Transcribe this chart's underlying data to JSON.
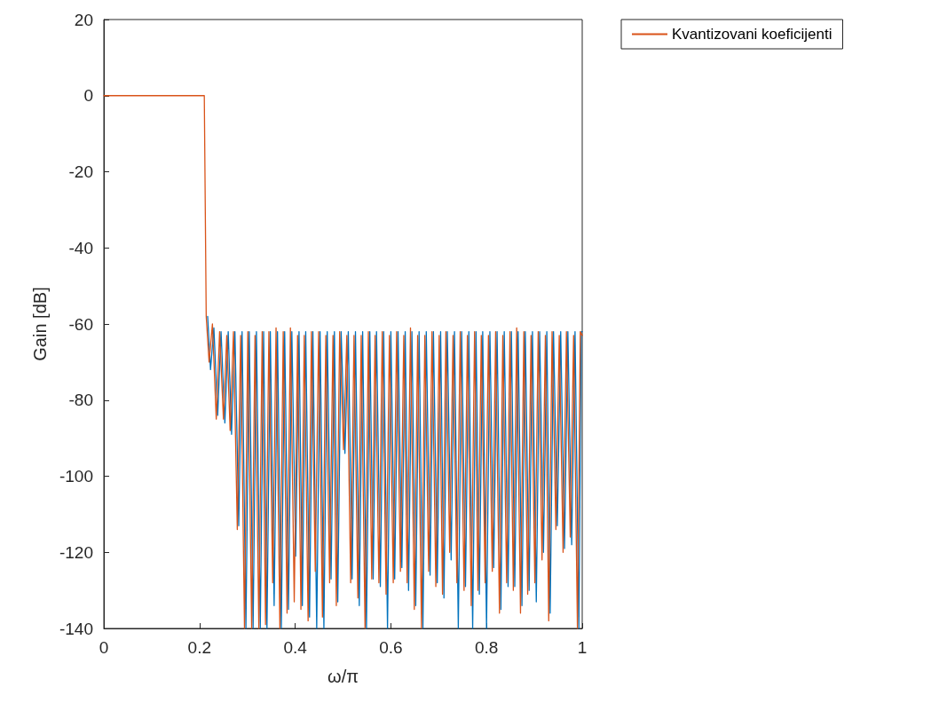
{
  "chart_data": {
    "type": "line",
    "xlabel": "ω/π",
    "ylabel": "Gain [dB]",
    "xlim": [
      0,
      1
    ],
    "xticks": [
      0,
      0.2,
      0.4,
      0.6,
      0.8,
      1
    ],
    "ylim": [
      -140,
      20
    ],
    "yticks": [
      -140,
      -120,
      -100,
      -80,
      -60,
      -40,
      -20,
      0,
      20
    ],
    "grid": false,
    "legend": "top right",
    "marker": "none",
    "line_style": "solid",
    "x": [
      0,
      0.21,
      0.214,
      0.22,
      0.227,
      0.235,
      0.242,
      0.25,
      0.257,
      0.264,
      0.271,
      0.279,
      0.286,
      0.294,
      0.301,
      0.309,
      0.316,
      0.324,
      0.331,
      0.338,
      0.345,
      0.353,
      0.36,
      0.368,
      0.375,
      0.383,
      0.39,
      0.398,
      0.405,
      0.412,
      0.419,
      0.427,
      0.434,
      0.442,
      0.449,
      0.457,
      0.464,
      0.472,
      0.479,
      0.486,
      0.493,
      0.501,
      0.508,
      0.516,
      0.523,
      0.531,
      0.538,
      0.546,
      0.553,
      0.56,
      0.567,
      0.575,
      0.582,
      0.59,
      0.597,
      0.605,
      0.612,
      0.62,
      0.627,
      0.634,
      0.641,
      0.649,
      0.656,
      0.664,
      0.671,
      0.679,
      0.686,
      0.694,
      0.701,
      0.708,
      0.715,
      0.723,
      0.73,
      0.738,
      0.745,
      0.753,
      0.76,
      0.768,
      0.775,
      0.782,
      0.789,
      0.797,
      0.804,
      0.812,
      0.819,
      0.827,
      0.834,
      0.842,
      0.849,
      0.856,
      0.863,
      0.871,
      0.878,
      0.886,
      0.893,
      0.901,
      0.908,
      0.916,
      0.923,
      0.93,
      0.937,
      0.945,
      0.952,
      0.96,
      0.967,
      0.975,
      0.982,
      0.99,
      0.996,
      1
    ],
    "series": [
      {
        "color": "#0072bd",
        "x": [
          0.217,
          0.223,
          0.23,
          0.238,
          0.245,
          0.253,
          0.26,
          0.267,
          0.274,
          0.282,
          0.289,
          0.297,
          0.304,
          0.312,
          0.319,
          0.327,
          0.334,
          0.341,
          0.348,
          0.356,
          0.363,
          0.371,
          0.378,
          0.386,
          0.393,
          0.401,
          0.408,
          0.415,
          0.422,
          0.43,
          0.437,
          0.445,
          0.452,
          0.46,
          0.467,
          0.475,
          0.482,
          0.489,
          0.496,
          0.504,
          0.511,
          0.519,
          0.526,
          0.534,
          0.541,
          0.549,
          0.556,
          0.563,
          0.57,
          0.578,
          0.585,
          0.593,
          0.6,
          0.608,
          0.615,
          0.623,
          0.63,
          0.637,
          0.644,
          0.652,
          0.659,
          0.667,
          0.674,
          0.682,
          0.689,
          0.697,
          0.704,
          0.711,
          0.718,
          0.726,
          0.733,
          0.741,
          0.748,
          0.756,
          0.763,
          0.771,
          0.778,
          0.785,
          0.792,
          0.8,
          0.807,
          0.815,
          0.822,
          0.83,
          0.837,
          0.845,
          0.852,
          0.859,
          0.866,
          0.874,
          0.881,
          0.889,
          0.896,
          0.904,
          0.911,
          0.919,
          0.926,
          0.933,
          0.94,
          0.948,
          0.955,
          0.963,
          0.97,
          0.978,
          0.985,
          0.993,
          0.998,
          1
        ],
        "values": [
          -58,
          -72,
          -61,
          -84,
          -62,
          -86,
          -62,
          -89,
          -62,
          -113,
          -62,
          -140,
          -62,
          -140,
          -62,
          -140,
          -62,
          -140,
          -62,
          -134,
          -62,
          -140,
          -62,
          -135,
          -62,
          -121,
          -62,
          -134,
          -62,
          -137,
          -62,
          -140,
          -62,
          -140,
          -62,
          -127,
          -62,
          -133,
          -62,
          -94,
          -62,
          -127,
          -62,
          -134,
          -62,
          -140,
          -62,
          -127,
          -62,
          -129,
          -62,
          -140,
          -62,
          -127,
          -62,
          -124,
          -62,
          -130,
          -62,
          -134,
          -62,
          -140,
          -62,
          -126,
          -62,
          -128,
          -62,
          -132,
          -62,
          -122,
          -62,
          -140,
          -62,
          -129,
          -62,
          -140,
          -62,
          -131,
          -62,
          -140,
          -62,
          -124,
          -62,
          -135,
          -62,
          -129,
          -62,
          -129,
          -62,
          -134,
          -62,
          -130,
          -62,
          -133,
          -62,
          -120,
          -62,
          -136,
          -62,
          -113,
          -62,
          -119,
          -62,
          -118,
          -62,
          -140,
          -62,
          -62
        ]
      },
      {
        "name": "Kvantizovani koeficijenti",
        "color": "#d95319",
        "values": [
          0,
          0,
          -58,
          -70,
          -60,
          -85,
          -62,
          -85,
          -63,
          -88,
          -62,
          -114,
          -63,
          -140,
          -62,
          -140,
          -63,
          -140,
          -62,
          -139,
          -62,
          -128,
          -61,
          -140,
          -62,
          -136,
          -61,
          -133,
          -63,
          -135,
          -63,
          -138,
          -62,
          -125,
          -62,
          -137,
          -63,
          -128,
          -63,
          -134,
          -62,
          -93,
          -63,
          -128,
          -63,
          -132,
          -63,
          -140,
          -62,
          -127,
          -63,
          -128,
          -62,
          -131,
          -63,
          -128,
          -62,
          -125,
          -63,
          -128,
          -61,
          -135,
          -63,
          -140,
          -63,
          -125,
          -62,
          -129,
          -63,
          -131,
          -62,
          -120,
          -63,
          -128,
          -62,
          -130,
          -63,
          -134,
          -62,
          -130,
          -63,
          -128,
          -63,
          -125,
          -62,
          -136,
          -63,
          -128,
          -62,
          -130,
          -61,
          -136,
          -62,
          -131,
          -63,
          -128,
          -62,
          -122,
          -63,
          -138,
          -62,
          -114,
          -63,
          -120,
          -62,
          -116,
          -63,
          -140,
          -62,
          -63
        ]
      }
    ]
  }
}
